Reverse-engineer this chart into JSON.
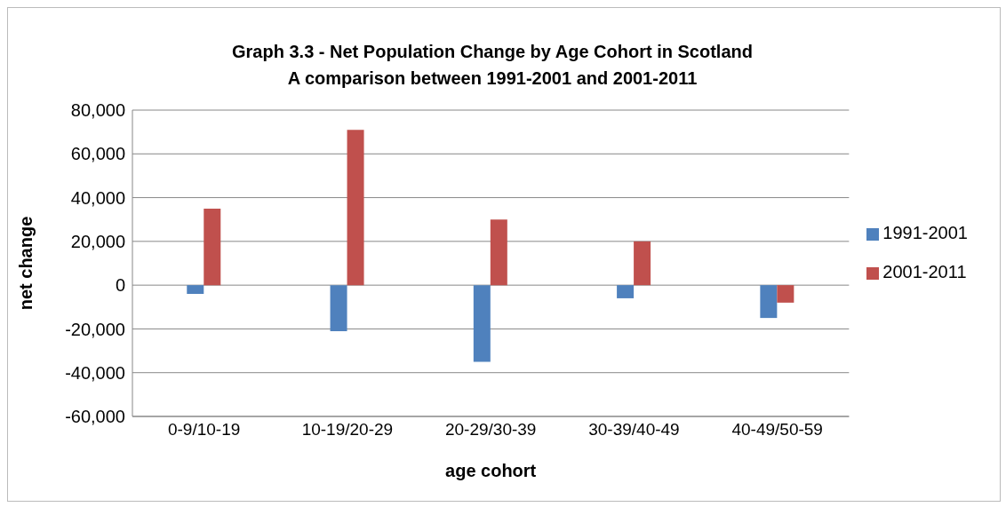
{
  "chart_data": {
    "type": "bar",
    "title": "Graph 3.3 - Net Population Change by Age Cohort in Scotland",
    "subtitle": "A comparison between 1991-2001 and 2001-2011",
    "xlabel": "age cohort",
    "ylabel": "net change",
    "categories": [
      "0-9/10-19",
      "10-19/20-29",
      "20-29/30-39",
      "30-39/40-49",
      "40-49/50-59"
    ],
    "series": [
      {
        "name": "1991-2001",
        "color": "#4f81bd",
        "values": [
          -4000,
          -21000,
          -35000,
          -6000,
          -15000
        ]
      },
      {
        "name": "2001-2011",
        "color": "#c0504d",
        "values": [
          35000,
          71000,
          30000,
          20000,
          -8000
        ]
      }
    ],
    "ylim": [
      -60000,
      80000
    ],
    "yticks": [
      {
        "value": -60000,
        "label": "-60,000"
      },
      {
        "value": -40000,
        "label": "-40,000"
      },
      {
        "value": -20000,
        "label": "-20,000"
      },
      0,
      {
        "value": 20000,
        "label": "20,000"
      },
      {
        "value": 40000,
        "label": "40,000"
      },
      {
        "value": 60000,
        "label": "60,000"
      },
      {
        "value": 80000,
        "label": "80,000"
      }
    ],
    "grid": "y",
    "legend": "right"
  }
}
